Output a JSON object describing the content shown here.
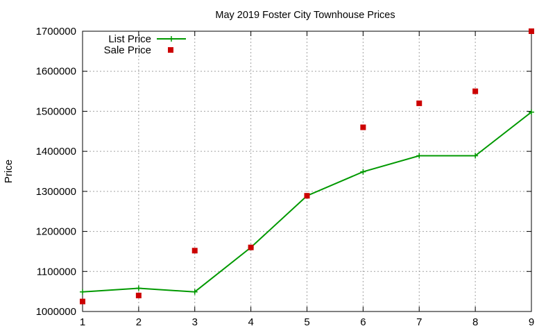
{
  "chart_data": {
    "type": "line",
    "title": "May 2019 Foster City Townhouse Prices",
    "xlabel": "",
    "ylabel": "Price",
    "xlim": [
      1,
      9
    ],
    "ylim": [
      1000000,
      1700000
    ],
    "x_ticks": [
      "1",
      "2",
      "3",
      "4",
      "5",
      "6",
      "7",
      "8",
      "9"
    ],
    "y_ticks": [
      "1000000",
      "1100000",
      "1200000",
      "1300000",
      "1400000",
      "1500000",
      "1600000",
      "1700000"
    ],
    "grid": true,
    "legend_position": "top-left",
    "x": [
      1,
      2,
      3,
      4,
      5,
      6,
      7,
      8,
      9
    ],
    "series": [
      {
        "name": "List Price",
        "style": "linespoints",
        "marker": "plus",
        "color": "#009900",
        "values": [
          1049000,
          1058000,
          1049000,
          1160000,
          1289000,
          1349000,
          1389000,
          1389000,
          1498000
        ]
      },
      {
        "name": "Sale Price",
        "style": "points",
        "marker": "square",
        "color": "#cc0000",
        "values": [
          1025000,
          1040000,
          1152000,
          1160000,
          1289000,
          1460000,
          1520000,
          1550000,
          1700000
        ]
      }
    ]
  }
}
